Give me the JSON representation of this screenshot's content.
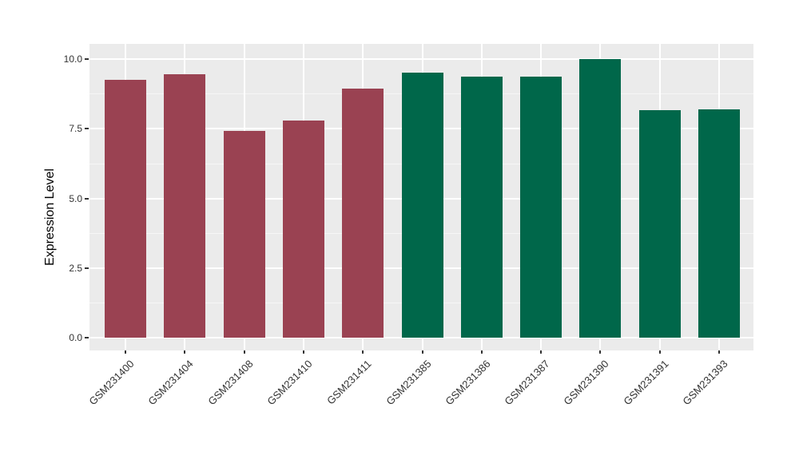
{
  "chart_data": {
    "type": "bar",
    "title": "",
    "xlabel": "",
    "ylabel": "Expression Level",
    "ylim": [
      0,
      10.5
    ],
    "yticks": [
      0.0,
      2.5,
      5.0,
      7.5,
      10.0
    ],
    "ytick_labels": [
      "0.0",
      "2.5",
      "5.0",
      "7.5",
      "10.0"
    ],
    "minor_yticks": [
      1.25,
      3.75,
      6.25,
      8.75
    ],
    "grid": "on",
    "legend": "none",
    "categories": [
      "GSM231400",
      "GSM231404",
      "GSM231408",
      "GSM231410",
      "GSM231411",
      "GSM231385",
      "GSM231386",
      "GSM231387",
      "GSM231390",
      "GSM231391",
      "GSM231393"
    ],
    "bars": [
      {
        "label": "GSM231400",
        "value": 9.25,
        "group": "red"
      },
      {
        "label": "GSM231404",
        "value": 9.46,
        "group": "red"
      },
      {
        "label": "GSM231408",
        "value": 7.42,
        "group": "red"
      },
      {
        "label": "GSM231410",
        "value": 7.8,
        "group": "red"
      },
      {
        "label": "GSM231411",
        "value": 8.95,
        "group": "red"
      },
      {
        "label": "GSM231385",
        "value": 9.52,
        "group": "green"
      },
      {
        "label": "GSM231386",
        "value": 9.37,
        "group": "green"
      },
      {
        "label": "GSM231387",
        "value": 9.37,
        "group": "green"
      },
      {
        "label": "GSM231390",
        "value": 10.0,
        "group": "green"
      },
      {
        "label": "GSM231391",
        "value": 8.17,
        "group": "green"
      },
      {
        "label": "GSM231393",
        "value": 8.21,
        "group": "green"
      }
    ],
    "colors": {
      "red": "#9A4252",
      "green": "#00674A",
      "panel_background": "#EBEBEB",
      "grid_major": "#FFFFFF",
      "grid_minor": "#F5F5F5",
      "axis_text": "#333333",
      "axis_title": "#000000"
    }
  }
}
